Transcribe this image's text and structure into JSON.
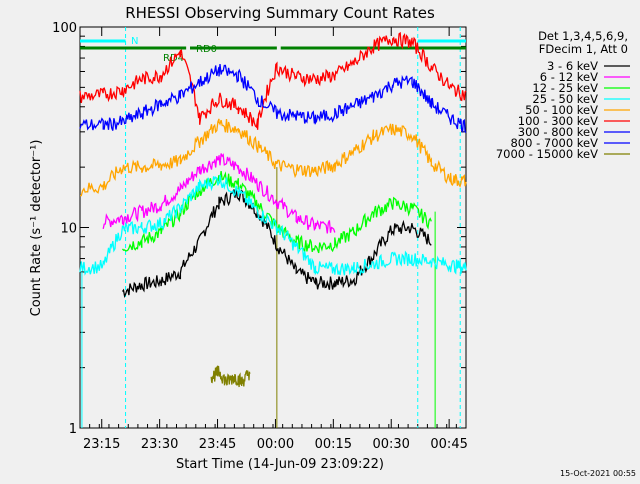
{
  "chart_data": {
    "type": "line",
    "title": "RHESSI Observing Summary Count Rates",
    "xlabel": "Start Time (14-Jun-09 23:09:22)",
    "ylabel": "Count Rate (s⁻¹ detector⁻¹)",
    "yscale": "log",
    "ylim": [
      1,
      100
    ],
    "xlim_minutes": [
      0,
      100
    ],
    "x_tick_minutes": [
      5.63,
      20.63,
      35.63,
      50.63,
      65.63,
      80.63,
      95.63
    ],
    "x_tick_labels": [
      "23:15",
      "23:30",
      "23:45",
      "00:00",
      "00:15",
      "00:30",
      "00:45"
    ],
    "y_ticks": [
      1,
      10,
      100
    ],
    "y_tick_labels": [
      "1",
      "10",
      "100"
    ],
    "legend_header": [
      "Det 1,3,4,5,6,9,",
      "FDecim 1, Att 0"
    ],
    "timestamp": "15-Oct-2021 00:55",
    "annotations": {
      "N": "N",
      "RD0": "RD0",
      "RD4": "RD4"
    },
    "colors": {
      "night_bar": "#00ffff",
      "decimation_bar": "#008000"
    },
    "night_intervals_minutes": [
      [
        0,
        11.8
      ],
      [
        87.5,
        100
      ]
    ],
    "decimation_intervals_minutes": [
      [
        0,
        27.5
      ],
      [
        28.5,
        51
      ],
      [
        52,
        100
      ]
    ],
    "boundary_lines_minutes": {
      "cyan": [
        11.8,
        87.5,
        98.5
      ],
      "olive": [
        51
      ],
      "green": [
        92
      ]
    },
    "series": [
      {
        "name": "3 - 6 keV",
        "color": "#000000",
        "x": [
          6,
          11,
          16,
          21,
          26,
          31,
          36,
          41,
          46,
          51,
          56,
          61,
          66,
          71,
          76,
          81,
          86,
          91,
          96,
          100
        ],
        "y": [
          null,
          4.8,
          5.2,
          5.4,
          6.0,
          8.5,
          13.2,
          15.0,
          12.0,
          8.2,
          6.0,
          5.3,
          5.3,
          5.5,
          7.2,
          9.8,
          10.0,
          8.5,
          null,
          null
        ]
      },
      {
        "name": "6 - 12 keV",
        "color": "#ff00ff",
        "x": [
          0,
          6,
          11,
          16,
          21,
          26,
          31,
          36,
          41,
          46,
          51,
          56,
          61,
          66,
          71,
          76,
          81,
          86,
          91,
          96,
          100
        ],
        "y": [
          null,
          10.6,
          11.2,
          12.0,
          13.0,
          15.5,
          19.5,
          22.0,
          20.0,
          16.5,
          13.5,
          11.2,
          10.2,
          10.0,
          null,
          null,
          null,
          null,
          null,
          null,
          null
        ]
      },
      {
        "name": "12 - 25 keV",
        "color": "#00ff00",
        "x": [
          0,
          6,
          11,
          16,
          21,
          26,
          31,
          36,
          41,
          46,
          51,
          56,
          61,
          66,
          71,
          76,
          81,
          86,
          91,
          96,
          100
        ],
        "y": [
          null,
          null,
          8.0,
          8.5,
          9.5,
          11.8,
          15.5,
          18.0,
          16.5,
          13.0,
          10.0,
          8.5,
          8.0,
          8.3,
          9.5,
          11.8,
          13.2,
          12.5,
          10.5,
          null,
          null
        ]
      },
      {
        "name": "25 - 50 keV",
        "color": "#00ffff",
        "x": [
          0,
          6,
          11,
          16,
          21,
          26,
          31,
          36,
          41,
          46,
          51,
          56,
          61,
          66,
          71,
          76,
          81,
          86,
          91,
          96,
          100
        ],
        "y": [
          6.3,
          6.4,
          9.8,
          10.0,
          10.5,
          12.5,
          16.0,
          17.5,
          15.0,
          12.0,
          10.0,
          8.0,
          6.3,
          6.2,
          6.3,
          6.6,
          7.0,
          7.0,
          6.8,
          6.5,
          6.3
        ]
      },
      {
        "name": "50 - 100 keV",
        "color": "#ffa500",
        "x": [
          0,
          6,
          11,
          16,
          21,
          26,
          31,
          36,
          41,
          46,
          51,
          56,
          61,
          66,
          71,
          76,
          81,
          86,
          91,
          96,
          100
        ],
        "y": [
          15.5,
          16.0,
          20.0,
          20.0,
          20.5,
          21.5,
          27.0,
          33.0,
          31.0,
          25.5,
          20.5,
          19.5,
          19.2,
          20.5,
          24.0,
          28.5,
          31.0,
          29.0,
          21.0,
          17.5,
          17.0
        ]
      },
      {
        "name": "100 - 300 keV",
        "color": "#ff0000",
        "x": [
          0,
          6,
          11,
          16,
          21,
          26,
          31,
          36,
          41,
          46,
          51,
          56,
          61,
          66,
          71,
          76,
          81,
          86,
          91,
          96,
          100
        ],
        "y": [
          45.0,
          46.0,
          48.5,
          55.0,
          57.5,
          75.0,
          35.0,
          44.0,
          40.0,
          32.5,
          63.0,
          56.5,
          55.0,
          57.5,
          66.0,
          80.0,
          88.0,
          84.0,
          63.0,
          50.0,
          45.5
        ]
      },
      {
        "name": "300 - 800 keV",
        "color": "#0000ff",
        "x": [
          0,
          6,
          11,
          16,
          21,
          26,
          31,
          36,
          41,
          46,
          51,
          56,
          61,
          66,
          71,
          76,
          81,
          86,
          91,
          96,
          100
        ],
        "y": [
          32.5,
          32.5,
          33.5,
          37.0,
          41.5,
          45.5,
          53.0,
          61.0,
          57.5,
          44.0,
          37.0,
          36.0,
          35.0,
          37.0,
          40.5,
          45.0,
          52.0,
          54.0,
          41.5,
          35.0,
          32.0
        ]
      },
      {
        "name": "800 - 7000 keV",
        "color": "#0000ff",
        "x": [],
        "y": []
      },
      {
        "name": "7000 - 15000 keV",
        "color": "#808000",
        "x": [
          34,
          36,
          38,
          40,
          42,
          44
        ],
        "y": [
          1.8,
          1.9,
          1.7,
          1.8,
          1.7,
          1.9
        ]
      }
    ]
  }
}
